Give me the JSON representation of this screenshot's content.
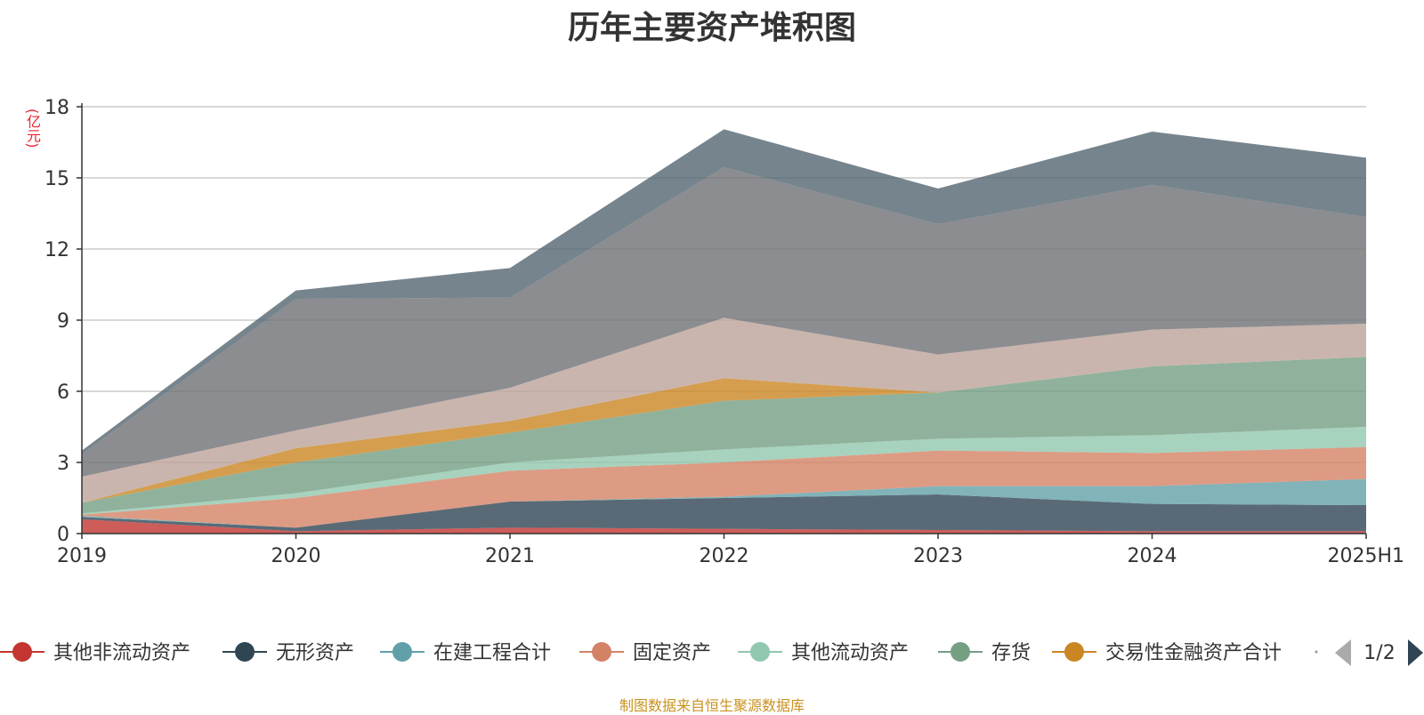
{
  "chart_data": {
    "type": "area",
    "stacked": true,
    "title": "历年主要资产堆积图",
    "unit": "(亿元)",
    "x": [
      "2019",
      "2020",
      "2021",
      "2022",
      "2023",
      "2024",
      "2025H1"
    ],
    "ylim": [
      0,
      18
    ],
    "yticks": [
      0,
      3,
      6,
      9,
      12,
      15,
      18
    ],
    "grid": true,
    "legend_position": "bottom",
    "series": [
      {
        "name": "其他非流动资产",
        "color": "#c23531",
        "values": [
          0.6,
          0.1,
          0.25,
          0.2,
          0.15,
          0.1,
          0.1
        ]
      },
      {
        "name": "无形资产",
        "color": "#2f4554",
        "values": [
          0.1,
          0.15,
          1.1,
          1.3,
          1.5,
          1.15,
          1.1
        ]
      },
      {
        "name": "在建工程合计",
        "color": "#61a0a8",
        "values": [
          0.05,
          0.0,
          0.0,
          0.05,
          0.35,
          0.75,
          1.1
        ]
      },
      {
        "name": "固定资产",
        "color": "#d48265",
        "values": [
          0.05,
          1.25,
          1.3,
          1.45,
          1.5,
          1.4,
          1.35
        ]
      },
      {
        "name": "其他流动资产",
        "color": "#91c7ae",
        "values": [
          0.05,
          0.2,
          0.35,
          0.55,
          0.5,
          0.75,
          0.85
        ]
      },
      {
        "name": "存货",
        "color": "#749f83",
        "values": [
          0.45,
          1.3,
          1.25,
          2.05,
          1.95,
          2.9,
          2.95
        ]
      },
      {
        "name": "交易性金融资产合计",
        "color": "#ca8622",
        "values": [
          0.0,
          0.6,
          0.5,
          0.95,
          0.0,
          0.0,
          0.0
        ]
      },
      {
        "name": "",
        "color": "#bda29a",
        "values": [
          1.1,
          0.75,
          1.4,
          2.55,
          1.6,
          1.55,
          1.4
        ]
      },
      {
        "name": "",
        "color": "#6e7074",
        "values": [
          0.95,
          5.55,
          3.8,
          6.35,
          5.5,
          6.1,
          4.5
        ]
      },
      {
        "name": "",
        "color": "#546570",
        "values": [
          0.15,
          0.35,
          1.25,
          1.6,
          1.5,
          2.25,
          2.5
        ]
      }
    ]
  },
  "legend": {
    "page_indicator": "1/2"
  },
  "footer": {
    "source_note": "制图数据来自恒生聚源数据库"
  },
  "icons": {
    "prev": "triangle-left-icon",
    "next": "triangle-right-icon"
  }
}
